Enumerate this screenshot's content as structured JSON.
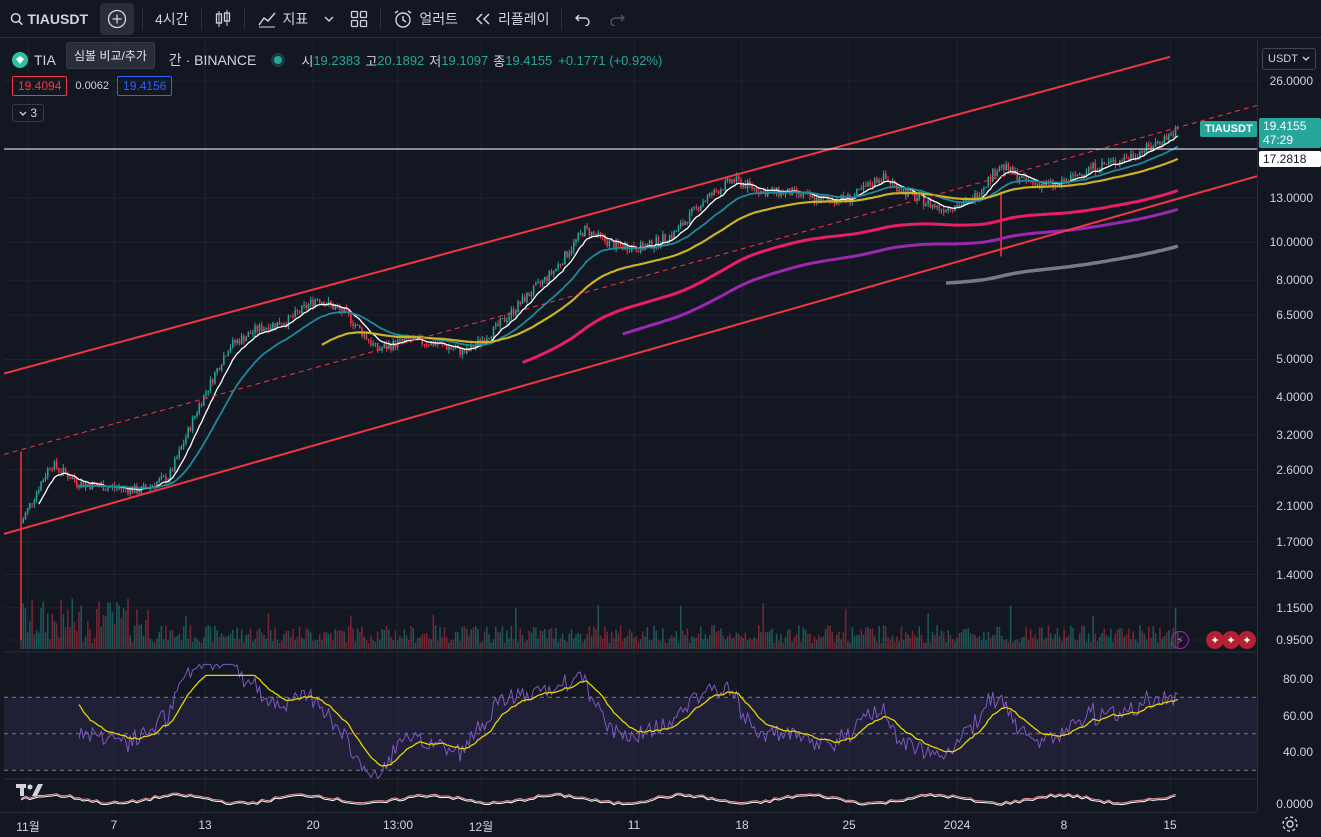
{
  "toolbar": {
    "symbol": "TIAUSDT",
    "add_tooltip": "심볼 비교/추가",
    "interval": "4시간",
    "indicators": "지표",
    "alert": "얼러트",
    "replay": "리플레이"
  },
  "legend": {
    "title_visible": "TIA",
    "title_rest": "간 · BINANCE",
    "open_label": "시",
    "open": "19.2383",
    "high_label": "고",
    "high": "20.1892",
    "low_label": "저",
    "low": "19.1097",
    "close_label": "종",
    "close": "19.4155",
    "change": "+0.1771 (+0.92%)"
  },
  "quote": {
    "bid": "19.4094",
    "spread": "0.0062",
    "ask": "19.4156"
  },
  "indicator_count": "3",
  "price_scale": {
    "currency": "USDT",
    "labels": [
      "26.0000",
      "13.0000",
      "10.0000",
      "8.0000",
      "6.5000",
      "5.0000",
      "4.0000",
      "3.2000",
      "2.6000",
      "2.1000",
      "1.7000",
      "1.4000",
      "1.1500",
      "0.9500"
    ],
    "current_price": "19.4155",
    "countdown": "47:29",
    "horizontal_line": "17.2818",
    "symbol_tag": "TIAUSDT"
  },
  "rsi_scale": [
    "80.00",
    "60.00",
    "40.00"
  ],
  "osc_scale": [
    "0.0000"
  ],
  "time_scale": [
    "11월",
    "7",
    "13",
    "20",
    "13:00",
    "12월",
    "11",
    "18",
    "25",
    "2024",
    "8",
    "15"
  ],
  "colors": {
    "up": "#26a69a",
    "down": "#f23645",
    "channel": "#f23645",
    "ema_white": "#ffffff",
    "ema_teal": "#1e8a99",
    "ema_yellow": "#c8b325",
    "ema_pink": "#e91e63",
    "ema_purple": "#9c27b0",
    "ema_gray": "#787b86",
    "rsi": "#7e57c2",
    "rsi_ma": "#e5d300"
  },
  "chart_data": {
    "type": "candlestick",
    "symbol": "TIAUSDT",
    "exchange": "BINANCE",
    "interval": "4시간",
    "scale": "log",
    "ylim": [
      0.9,
      30
    ],
    "x_ticks": [
      "11월",
      "7",
      "13",
      "20",
      "13:00",
      "12월",
      "11",
      "18",
      "25",
      "2024",
      "8",
      "15"
    ],
    "y_ticks": [
      26,
      13,
      10,
      8,
      6.5,
      5,
      4,
      3.2,
      2.6,
      2.1,
      1.7,
      1.4,
      1.15,
      0.95
    ],
    "close_series": [
      {
        "x": "11월",
        "close": 1.9
      },
      {
        "x": "11월+1",
        "close": 2.7
      },
      {
        "x": "11월+2",
        "close": 2.4
      },
      {
        "x": "7",
        "close": 2.35
      },
      {
        "x": "9",
        "close": 2.3
      },
      {
        "x": "10",
        "close": 2.5
      },
      {
        "x": "12",
        "close": 3.8
      },
      {
        "x": "13",
        "close": 5.4
      },
      {
        "x": "14",
        "close": 6.0
      },
      {
        "x": "16",
        "close": 6.3
      },
      {
        "x": "18",
        "close": 7.2
      },
      {
        "x": "20",
        "close": 6.5
      },
      {
        "x": "21",
        "close": 5.3
      },
      {
        "x": "22",
        "close": 5.6
      },
      {
        "x": "23",
        "close": 5.5
      },
      {
        "x": "25",
        "close": 5.2
      },
      {
        "x": "27",
        "close": 6.0
      },
      {
        "x": "29",
        "close": 7.2
      },
      {
        "x": "12월",
        "close": 8.5
      },
      {
        "x": "12월+2",
        "close": 10.8
      },
      {
        "x": "12월+4",
        "close": 9.8
      },
      {
        "x": "7",
        "close": 9.7
      },
      {
        "x": "9",
        "close": 10.5
      },
      {
        "x": "11",
        "close": 12.8
      },
      {
        "x": "13",
        "close": 14.5
      },
      {
        "x": "15",
        "close": 13.5
      },
      {
        "x": "18",
        "close": 13.4
      },
      {
        "x": "20",
        "close": 12.8
      },
      {
        "x": "22",
        "close": 13.0
      },
      {
        "x": "25",
        "close": 14.8
      },
      {
        "x": "27",
        "close": 13.2
      },
      {
        "x": "29",
        "close": 12.2
      },
      {
        "x": "2024",
        "close": 12.7
      },
      {
        "x": "3",
        "close": 15.8
      },
      {
        "x": "6",
        "close": 14.2
      },
      {
        "x": "8",
        "close": 14.0
      },
      {
        "x": "10",
        "close": 15.5
      },
      {
        "x": "12",
        "close": 16.2
      },
      {
        "x": "14",
        "close": 17.5
      },
      {
        "x": "15",
        "close": 19.4155
      }
    ],
    "horizontal_line": 17.2818,
    "rsi": {
      "overbought": 70,
      "oversold": 30,
      "y_ticks": [
        80,
        60,
        40
      ],
      "last": 63
    }
  }
}
